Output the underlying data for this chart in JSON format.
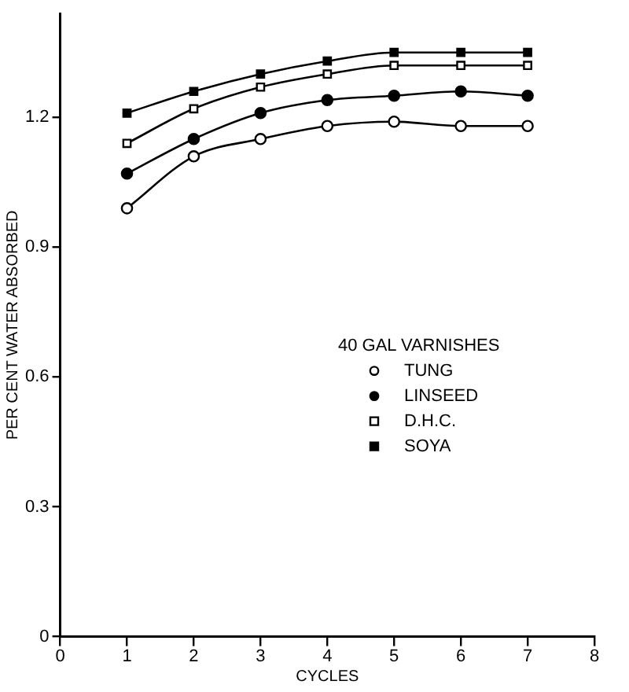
{
  "chart_data": {
    "type": "line",
    "xlabel": "CYCLES",
    "ylabel": "PER CENT WATER ABSORBED",
    "legend_title": "40 GAL VARNISHES",
    "x": [
      1,
      2,
      3,
      4,
      5,
      6,
      7
    ],
    "series": [
      {
        "name": "TUNG",
        "color": "#000000",
        "marker": "circle-open",
        "values": [
          0.99,
          1.11,
          1.15,
          1.18,
          1.19,
          1.18,
          1.18
        ]
      },
      {
        "name": "LINSEED",
        "color": "#000000",
        "marker": "circle",
        "values": [
          1.07,
          1.15,
          1.21,
          1.24,
          1.25,
          1.26,
          1.25
        ]
      },
      {
        "name": "D.H.C.",
        "color": "#000000",
        "marker": "square-open",
        "values": [
          1.14,
          1.22,
          1.27,
          1.3,
          1.32,
          1.32,
          1.32
        ]
      },
      {
        "name": "SOYA",
        "color": "#000000",
        "marker": "square",
        "values": [
          1.21,
          1.26,
          1.3,
          1.33,
          1.35,
          1.35,
          1.35
        ]
      }
    ],
    "xlim": [
      0,
      8
    ],
    "xticks": [
      0,
      1,
      2,
      3,
      4,
      5,
      6,
      7,
      8
    ],
    "ylim": [
      0,
      1.44
    ],
    "yticks": [
      0,
      0.3,
      0.6,
      0.9,
      1.2
    ],
    "grid": false,
    "legend": "bottom right",
    "line_style": "solid"
  }
}
